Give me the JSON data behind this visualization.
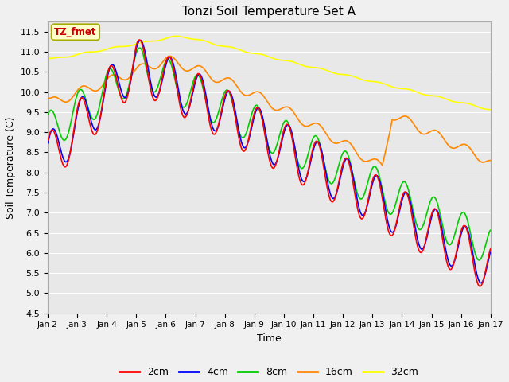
{
  "title": "Tonzi Soil Temperature Set A",
  "xlabel": "Time",
  "ylabel": "Soil Temperature (C)",
  "ylim": [
    4.5,
    11.75
  ],
  "xlim": [
    0,
    15
  ],
  "xtick_labels": [
    "Jan 2",
    "Jan 3",
    "Jan 4",
    "Jan 5",
    "Jan 6",
    "Jan 7",
    "Jan 8",
    "Jan 9",
    "Jan 10",
    "Jan 11",
    "Jan 12",
    "Jan 13",
    "Jan 14",
    "Jan 15",
    "Jan 16",
    "Jan 17"
  ],
  "xtick_positions": [
    0,
    1,
    2,
    3,
    4,
    5,
    6,
    7,
    8,
    9,
    10,
    11,
    12,
    13,
    14,
    15
  ],
  "legend_labels": [
    "2cm",
    "4cm",
    "8cm",
    "16cm",
    "32cm"
  ],
  "colors": {
    "2cm": "#ff0000",
    "4cm": "#0000ff",
    "8cm": "#00cc00",
    "16cm": "#ff8800",
    "32cm": "#ffff00"
  },
  "annotation_text": "TZ_fmet",
  "annotation_bg": "#ffffcc",
  "annotation_border": "#aaaa00",
  "annotation_text_color": "#cc0000",
  "bg_color": "#e8e8e8",
  "linewidth": 1.2,
  "yticks": [
    4.5,
    5.0,
    5.5,
    6.0,
    6.5,
    7.0,
    7.5,
    8.0,
    8.5,
    9.0,
    9.5,
    10.0,
    10.5,
    11.0,
    11.5
  ]
}
